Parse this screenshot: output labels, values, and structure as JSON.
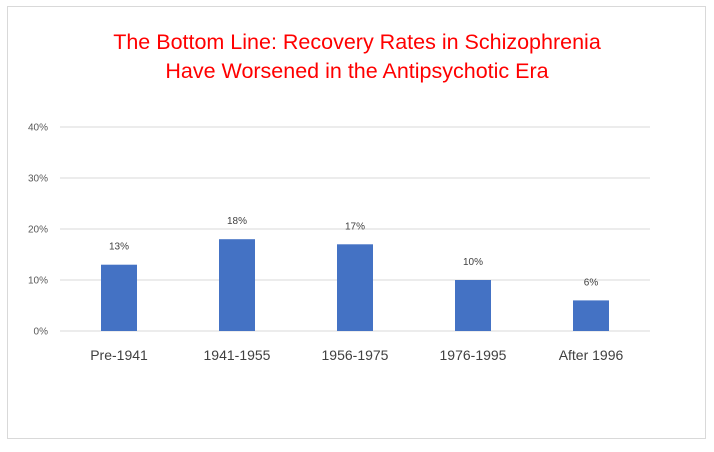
{
  "chart_data": {
    "type": "bar",
    "title_lines": [
      "The Bottom Line: Recovery Rates in Schizophrenia",
      "Have Worsened in the Antipsychotic Era"
    ],
    "categories": [
      "Pre-1941",
      "1941-1955",
      "1956-1975",
      "1976-1995",
      "After 1996"
    ],
    "values": [
      13,
      18,
      17,
      10,
      6
    ],
    "data_labels": [
      "13%",
      "18%",
      "17%",
      "10%",
      "6%"
    ],
    "y_ticks": [
      0,
      10,
      20,
      30,
      40
    ],
    "y_tick_labels": [
      "0%",
      "10%",
      "20%",
      "30%",
      "40%"
    ],
    "ylim": [
      0,
      40
    ],
    "xlabel": "",
    "ylabel": "",
    "grid": true,
    "legend": "none",
    "colors": {
      "bar": "#4472c4",
      "title": "#ff0000",
      "grid": "#d9d9d9"
    }
  }
}
